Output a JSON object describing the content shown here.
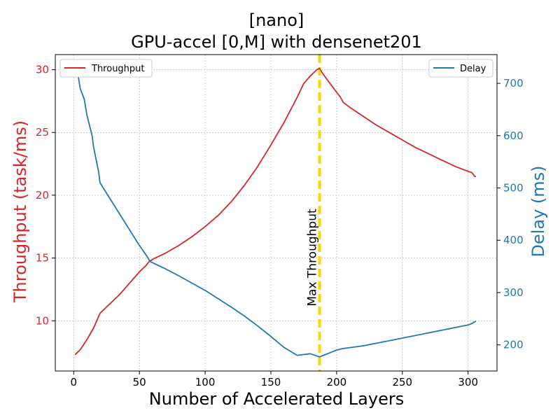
{
  "chart_data": {
    "type": "line",
    "title_line1": "[nano]",
    "title_line2": "GPU-accel [0,M] with densenet201",
    "xlabel": "Number of Accelerated Layers",
    "ylabel_left": "Throughput (task/ms)",
    "ylabel_right": "Delay (ms)",
    "xlim": [
      -14,
      322
    ],
    "ylim_left": [
      6.0,
      31.2
    ],
    "ylim_right": [
      150,
      755
    ],
    "xticks": [
      0,
      50,
      100,
      150,
      200,
      250,
      300
    ],
    "yticks_left": [
      10,
      15,
      20,
      25,
      30
    ],
    "yticks_right": [
      200,
      300,
      400,
      500,
      600,
      700
    ],
    "grid": true,
    "colors": {
      "throughput": "#d62728",
      "delay": "#1f77b4",
      "max_line": "#ffd700"
    },
    "series": [
      {
        "name": "Throughput",
        "axis": "left",
        "x": [
          1,
          5,
          10,
          15,
          20,
          25,
          30,
          35,
          40,
          45,
          50,
          55,
          58,
          59,
          60,
          70,
          80,
          90,
          100,
          110,
          120,
          130,
          140,
          150,
          160,
          170,
          175,
          180,
          185,
          187,
          190,
          195,
          200,
          203,
          205,
          210,
          220,
          230,
          240,
          250,
          260,
          270,
          280,
          290,
          300,
          303,
          305,
          306
        ],
        "y": [
          7.3,
          7.7,
          8.5,
          9.4,
          10.6,
          11.1,
          11.6,
          12.1,
          12.7,
          13.3,
          13.9,
          14.4,
          14.8,
          14.8,
          14.9,
          15.4,
          16.0,
          16.7,
          17.5,
          18.4,
          19.5,
          20.8,
          22.3,
          24.0,
          25.8,
          27.8,
          28.9,
          29.5,
          30.0,
          30.1,
          29.6,
          28.9,
          28.2,
          27.8,
          27.4,
          27.0,
          26.3,
          25.6,
          25.0,
          24.4,
          23.8,
          23.3,
          22.8,
          22.3,
          21.9,
          21.8,
          21.5,
          21.5
        ]
      },
      {
        "name": "Delay",
        "axis": "right",
        "x": [
          1,
          3,
          5,
          8,
          10,
          12,
          14,
          15,
          17,
          19,
          20,
          25,
          30,
          35,
          40,
          45,
          50,
          55,
          58,
          59,
          60,
          70,
          80,
          90,
          100,
          110,
          120,
          130,
          140,
          150,
          160,
          170,
          180,
          187,
          190,
          195,
          200,
          203,
          205,
          220,
          240,
          260,
          280,
          300,
          303,
          305,
          306
        ],
        "y": [
          730,
          720,
          690,
          670,
          640,
          620,
          600,
          580,
          555,
          530,
          510,
          490,
          470,
          450,
          430,
          410,
          390,
          372,
          360,
          358,
          357,
          345,
          332,
          318,
          304,
          288,
          272,
          255,
          236,
          216,
          195,
          180,
          183,
          177,
          180,
          185,
          190,
          192,
          193,
          198,
          208,
          218,
          228,
          238,
          241,
          244,
          245
        ]
      }
    ],
    "vline": {
      "x": 187,
      "label": "Max Throughput"
    },
    "legend_left": {
      "position": "upper-left",
      "label": "Throughput"
    },
    "legend_right": {
      "position": "upper-right",
      "label": "Delay"
    }
  }
}
